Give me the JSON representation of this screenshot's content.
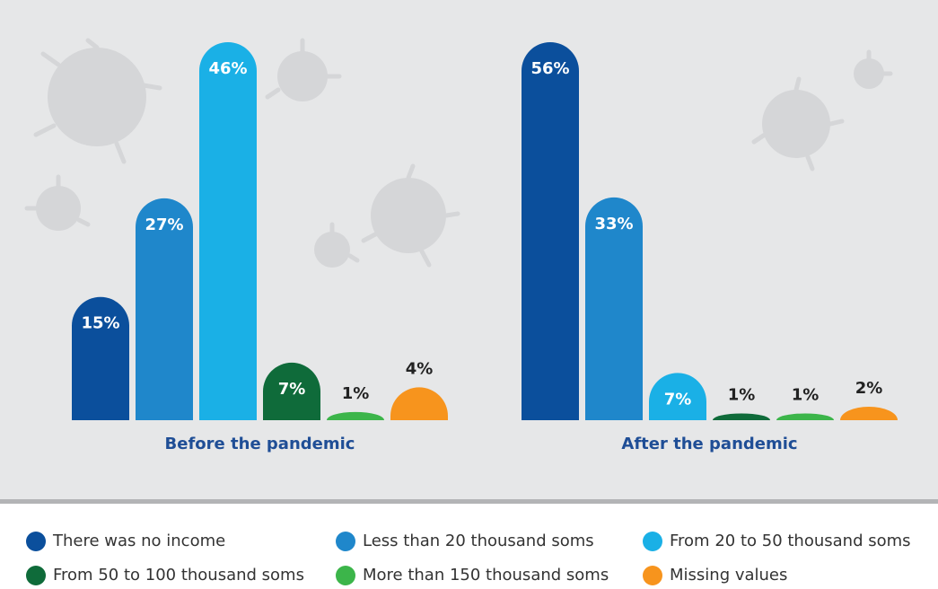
{
  "chart_data": {
    "type": "bar",
    "categories": [
      "Before the pandemic",
      "After the pandemic"
    ],
    "series": [
      {
        "name": "There was no income",
        "color": "#0b4f9c",
        "values": [
          15,
          56
        ],
        "value_labels": [
          "15%",
          "56%"
        ]
      },
      {
        "name": "Less than 20 thousand soms",
        "color": "#1f87cb",
        "values": [
          27,
          33
        ],
        "value_labels": [
          "27%",
          "33%"
        ]
      },
      {
        "name": "From 20 to 50 thousand soms",
        "color": "#1ab0e6",
        "values": [
          46,
          7
        ],
        "value_labels": [
          "46%",
          "7%"
        ]
      },
      {
        "name": "From 50 to 100 thousand soms",
        "color": "#0f6b3a",
        "values": [
          7,
          1
        ],
        "value_labels": [
          "7%",
          "1%"
        ]
      },
      {
        "name": "More than 150 thousand soms",
        "color": "#3cb54a",
        "values": [
          1,
          1
        ],
        "value_labels": [
          "1%",
          "1%"
        ]
      },
      {
        "name": "Missing values",
        "color": "#f7941d",
        "values": [
          4,
          2
        ],
        "value_labels": [
          "4%",
          "2%"
        ]
      }
    ]
  }
}
